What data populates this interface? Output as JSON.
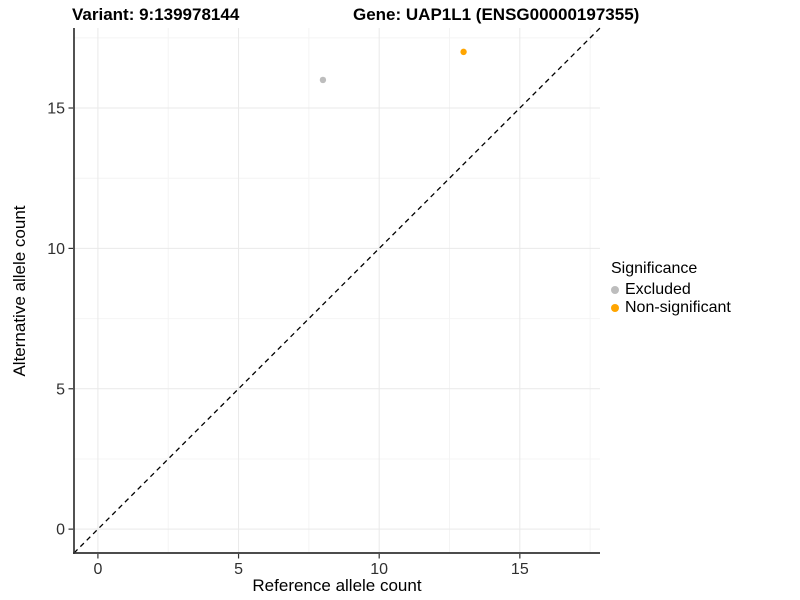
{
  "title": {
    "variant": "Variant: 9:139978144",
    "gene": "Gene: UAP1L1 (ENSG00000197355)"
  },
  "chart_data": {
    "type": "scatter",
    "xlabel": "Reference allele count",
    "ylabel": "Alternative allele count",
    "xlim": [
      -0.85,
      17.85
    ],
    "ylim": [
      -0.85,
      17.85
    ],
    "x_ticks": [
      0,
      5,
      10,
      15
    ],
    "y_ticks": [
      0,
      5,
      10,
      15
    ],
    "x_minor_ticks": [
      2.5,
      7.5,
      12.5,
      17.5
    ],
    "y_minor_ticks": [
      2.5,
      7.5,
      12.5,
      17.5
    ],
    "grid": true,
    "identity_line": {
      "type": "dashed",
      "slope": 1,
      "intercept": 0,
      "color": "#000000"
    },
    "series": [
      {
        "name": "Excluded",
        "color": "#BDBDBD",
        "points": [
          {
            "x": 8,
            "y": 16
          }
        ]
      },
      {
        "name": "Non-significant",
        "color": "#FFA500",
        "points": [
          {
            "x": 13,
            "y": 17
          }
        ]
      }
    ],
    "legend": {
      "title": "Significance",
      "position": "right"
    }
  },
  "colors": {
    "axis_line": "#333333",
    "tick_label": "#303030",
    "grid_major": "#e9e9e9",
    "grid_minor": "#f4f4f4"
  }
}
